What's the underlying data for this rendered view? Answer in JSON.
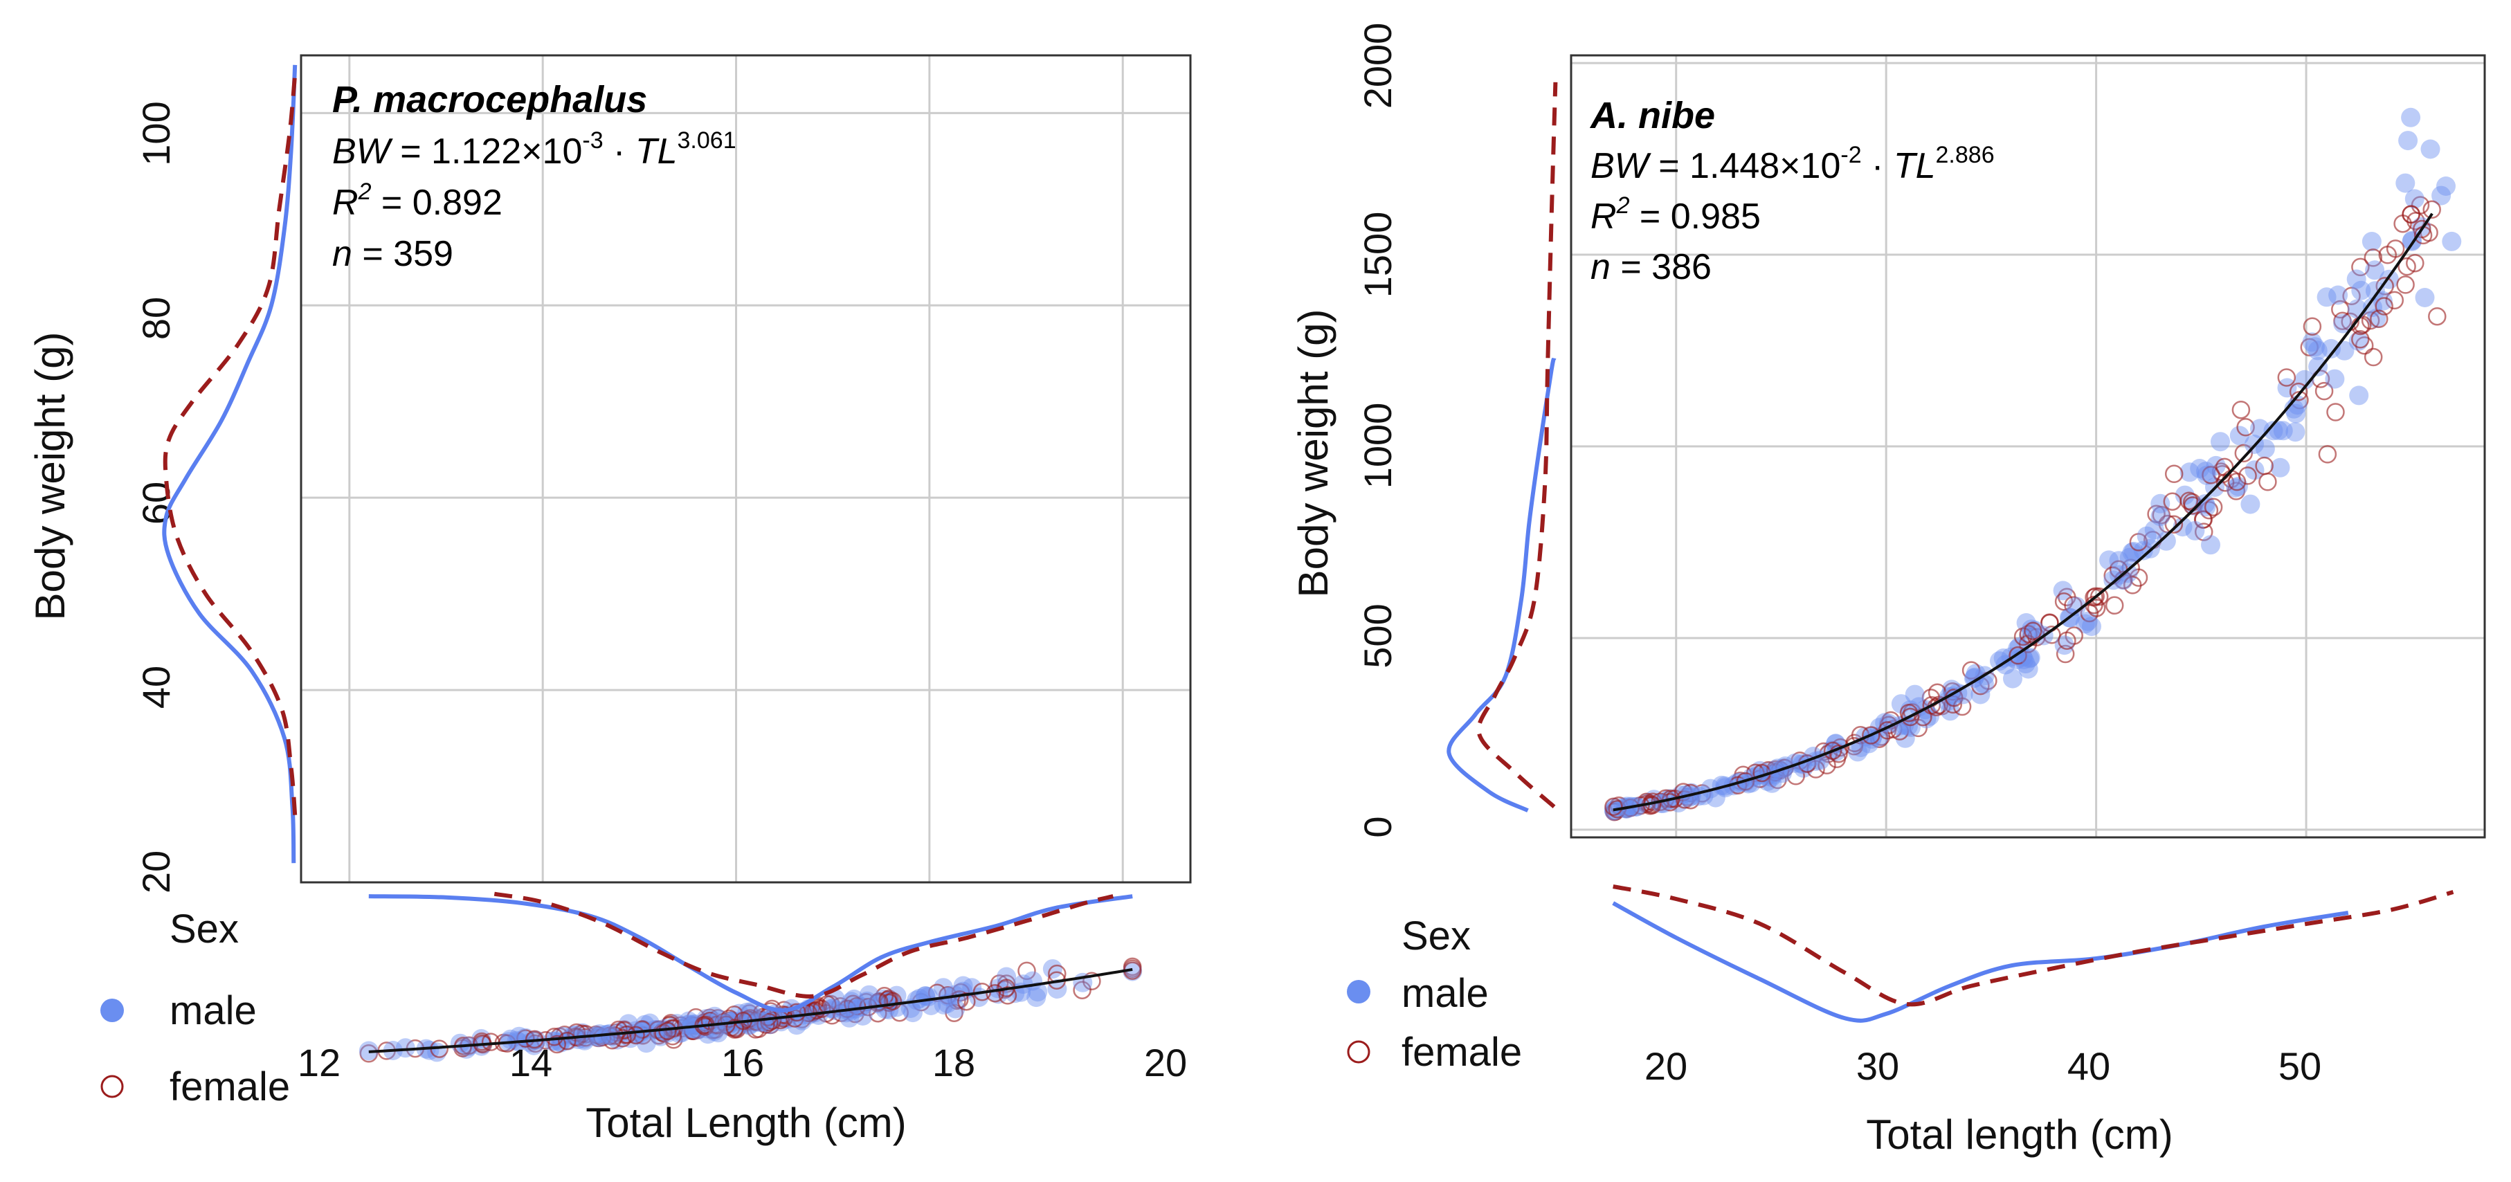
{
  "chart_data": [
    {
      "type": "scatter",
      "species": "P. macrocephalus",
      "equation": {
        "lhs": "BW",
        "eq": " = 1.122×10",
        "exp1": "-3",
        "dot": " · ",
        "var": "TL",
        "exp2": "3.061"
      },
      "r2": {
        "label": "R",
        "sup": "2",
        "value": " = 0.892"
      },
      "n": {
        "label": "n",
        "value": " = 359"
      },
      "xlabel": "Total Length (cm)",
      "ylabel": "Body weight (g)",
      "xlim": [
        11.5,
        20.7
      ],
      "ylim": [
        20,
        106
      ],
      "xticks": [
        12,
        14,
        16,
        18,
        20
      ],
      "yticks": [
        20,
        40,
        60,
        80,
        100
      ],
      "fit": {
        "a": 0.001122,
        "b": 3.061,
        "xrange": [
          12.2,
          20.1
        ]
      },
      "scatter_n": 359,
      "x_range_data": [
        12.2,
        20.1
      ],
      "y_noise_frac": 0.085,
      "marginal_x": {
        "male": [
          [
            12.2,
            0.03
          ],
          [
            13,
            0.04
          ],
          [
            13.8,
            0.09
          ],
          [
            14.5,
            0.2
          ],
          [
            15,
            0.38
          ],
          [
            15.5,
            0.62
          ],
          [
            16,
            0.85
          ],
          [
            16.5,
            1.0
          ],
          [
            17,
            0.8
          ],
          [
            17.5,
            0.55
          ],
          [
            18,
            0.42
          ],
          [
            18.7,
            0.28
          ],
          [
            19.3,
            0.13
          ],
          [
            20.1,
            0.03
          ]
        ],
        "female": [
          [
            13.5,
            0.01
          ],
          [
            14,
            0.08
          ],
          [
            14.6,
            0.25
          ],
          [
            15.2,
            0.5
          ],
          [
            15.7,
            0.68
          ],
          [
            16.2,
            0.78
          ],
          [
            16.8,
            0.88
          ],
          [
            17.3,
            0.7
          ],
          [
            17.8,
            0.5
          ],
          [
            18.4,
            0.38
          ],
          [
            19,
            0.24
          ],
          [
            19.6,
            0.09
          ],
          [
            19.9,
            0.03
          ]
        ]
      },
      "marginal_y": {
        "male": [
          [
            22,
            0.03
          ],
          [
            28,
            0.04
          ],
          [
            35,
            0.1
          ],
          [
            42,
            0.35
          ],
          [
            48,
            0.75
          ],
          [
            54,
            0.98
          ],
          [
            58,
            1.0
          ],
          [
            62,
            0.85
          ],
          [
            68,
            0.58
          ],
          [
            74,
            0.38
          ],
          [
            80,
            0.2
          ],
          [
            88,
            0.1
          ],
          [
            96,
            0.05
          ],
          [
            105,
            0.02
          ]
        ],
        "female": [
          [
            27,
            0.02
          ],
          [
            32,
            0.05
          ],
          [
            38,
            0.12
          ],
          [
            44,
            0.35
          ],
          [
            50,
            0.7
          ],
          [
            56,
            0.92
          ],
          [
            62,
            1.0
          ],
          [
            66,
            0.98
          ],
          [
            70,
            0.8
          ],
          [
            76,
            0.45
          ],
          [
            82,
            0.22
          ],
          [
            90,
            0.14
          ],
          [
            98,
            0.06
          ],
          [
            104,
            0.02
          ]
        ]
      },
      "legend": {
        "title": "Sex",
        "items": [
          "male",
          "female"
        ]
      }
    },
    {
      "type": "scatter",
      "species": "A. nibe",
      "equation": {
        "lhs": "BW",
        "eq": " = 1.448×10",
        "exp1": "-2",
        "dot": " · ",
        "var": "TL",
        "exp2": "2.886"
      },
      "r2": {
        "label": "R",
        "sup": "2",
        "value": " = 0.985"
      },
      "n": {
        "label": "n",
        "value": " = 386"
      },
      "xlabel": "Total length (cm)",
      "ylabel": "Body weight (g)",
      "xlim": [
        15,
        58.5
      ],
      "ylim": [
        -20,
        2020
      ],
      "xticks": [
        20,
        30,
        40,
        50
      ],
      "yticks": [
        0,
        500,
        1000,
        1500,
        2000
      ],
      "fit": {
        "a": 0.01448,
        "b": 2.886,
        "xrange": [
          17,
          56
        ]
      },
      "scatter_n": 386,
      "x_range_data": [
        17,
        57
      ],
      "y_noise_frac": 0.07,
      "marginal_x": {
        "male": [
          [
            17,
            0.15
          ],
          [
            20,
            0.4
          ],
          [
            24,
            0.7
          ],
          [
            28,
            0.98
          ],
          [
            30,
            0.95
          ],
          [
            33,
            0.75
          ],
          [
            36,
            0.6
          ],
          [
            40,
            0.55
          ],
          [
            44,
            0.45
          ],
          [
            48,
            0.32
          ],
          [
            52,
            0.22
          ]
        ],
        "female": [
          [
            17,
            0.03
          ],
          [
            20,
            0.12
          ],
          [
            24,
            0.3
          ],
          [
            28,
            0.65
          ],
          [
            31,
            0.88
          ],
          [
            34,
            0.75
          ],
          [
            38,
            0.62
          ],
          [
            42,
            0.5
          ],
          [
            46,
            0.4
          ],
          [
            50,
            0.3
          ],
          [
            54,
            0.2
          ],
          [
            57,
            0.07
          ]
        ]
      },
      "marginal_y": {
        "male": [
          [
            50,
            0.25
          ],
          [
            100,
            0.55
          ],
          [
            200,
            0.85
          ],
          [
            300,
            0.65
          ],
          [
            400,
            0.42
          ],
          [
            600,
            0.3
          ],
          [
            800,
            0.24
          ],
          [
            1000,
            0.16
          ],
          [
            1200,
            0.07
          ],
          [
            1230,
            0.05
          ]
        ],
        "female": [
          [
            60,
            0.05
          ],
          [
            150,
            0.35
          ],
          [
            250,
            0.62
          ],
          [
            350,
            0.5
          ],
          [
            450,
            0.35
          ],
          [
            600,
            0.2
          ],
          [
            900,
            0.12
          ],
          [
            1200,
            0.1
          ],
          [
            1600,
            0.07
          ],
          [
            1950,
            0.04
          ]
        ]
      },
      "legend": {
        "title": "Sex",
        "items": [
          "male",
          "female"
        ]
      }
    }
  ],
  "colors": {
    "male": "#6a8ef0",
    "female": "#9b1c1c",
    "fit": "#111111",
    "grid": "#cccccc",
    "frame": "#333333"
  }
}
